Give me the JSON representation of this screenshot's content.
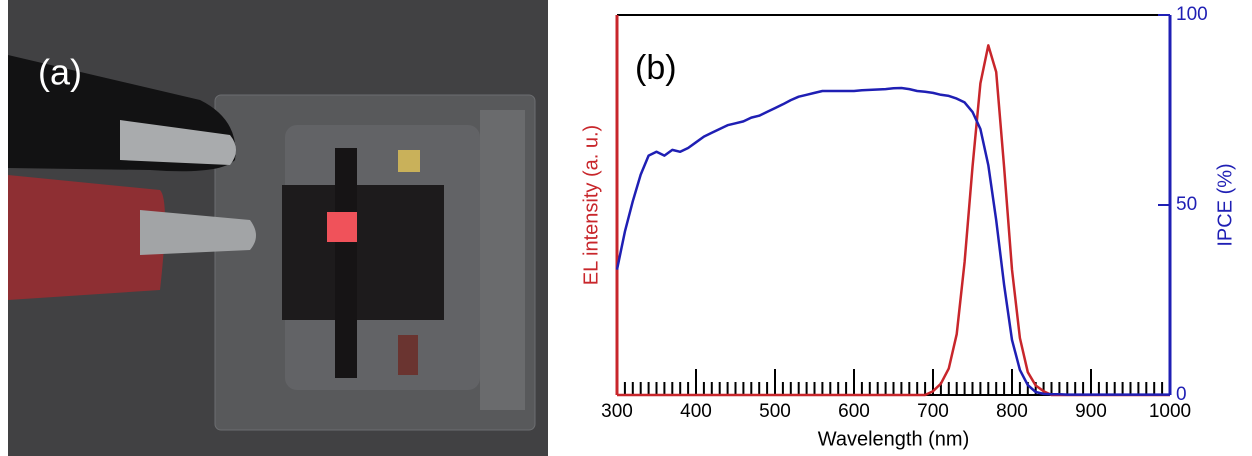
{
  "photo": {
    "label": "(a)"
  },
  "chart_data": {
    "type": "line",
    "label": "(b)",
    "xlabel": "Wavelength (nm)",
    "ylabel": "EL intensity (a. u.)",
    "y2label": "IPCE (%)",
    "xlim": [
      300,
      1000
    ],
    "xticks": [
      300,
      400,
      500,
      600,
      700,
      800,
      900,
      1000
    ],
    "xminorticks": [
      310,
      320,
      330,
      340,
      350,
      360,
      370,
      380,
      390,
      410,
      420,
      430,
      440,
      450,
      460,
      470,
      480,
      490,
      510,
      520,
      530,
      540,
      550,
      560,
      570,
      580,
      590,
      610,
      620,
      630,
      640,
      650,
      660,
      670,
      680,
      690,
      710,
      720,
      730,
      740,
      750,
      760,
      770,
      780,
      790,
      810,
      820,
      830,
      840,
      850,
      860,
      870,
      880,
      890,
      910,
      920,
      930,
      940,
      950,
      960,
      970,
      980,
      990
    ],
    "ylim": [
      0,
      1
    ],
    "y2lim": [
      0,
      100
    ],
    "y2ticks": [
      0,
      50,
      100
    ],
    "x": [
      300,
      310,
      320,
      330,
      340,
      350,
      360,
      370,
      380,
      390,
      400,
      410,
      420,
      430,
      440,
      450,
      460,
      470,
      480,
      490,
      500,
      510,
      520,
      530,
      540,
      550,
      560,
      570,
      580,
      590,
      600,
      610,
      620,
      630,
      640,
      650,
      660,
      670,
      680,
      690,
      700,
      710,
      720,
      730,
      740,
      750,
      760,
      770,
      780,
      790,
      800,
      810,
      820,
      830,
      840,
      850,
      860,
      870,
      880,
      890,
      900,
      910,
      920,
      930,
      940,
      950,
      960,
      970,
      980,
      990,
      1000
    ],
    "series": [
      {
        "color": "#c8262b",
        "axis": "y",
        "values": [
          0,
          0,
          0,
          0,
          0,
          0,
          0,
          0,
          0,
          0,
          0,
          0,
          0,
          0,
          0,
          0,
          0,
          0,
          0,
          0,
          0,
          0,
          0,
          0,
          0,
          0,
          0,
          0,
          0,
          0,
          0,
          0,
          0,
          0,
          0,
          0,
          0,
          0,
          0,
          0,
          0.01,
          0.03,
          0.07,
          0.16,
          0.35,
          0.6,
          0.82,
          0.92,
          0.85,
          0.6,
          0.33,
          0.15,
          0.06,
          0.025,
          0.01,
          0,
          0,
          0,
          0,
          0,
          0,
          0,
          0,
          0,
          0,
          0,
          0,
          0,
          0,
          0,
          0
        ]
      },
      {
        "color": "#1f1fb4",
        "axis": "y2",
        "values": [
          33,
          43,
          51,
          58,
          63,
          64,
          63,
          64.5,
          64,
          65,
          66.5,
          68,
          69,
          70,
          71,
          71.5,
          72,
          73,
          73.5,
          74.5,
          75.5,
          76.5,
          77.6,
          78.5,
          79,
          79.5,
          80,
          80,
          80,
          80,
          80,
          80.2,
          80.3,
          80.4,
          80.5,
          80.7,
          80.8,
          80.5,
          80,
          79.8,
          79.5,
          79,
          78.7,
          78,
          77,
          74.5,
          70,
          60.5,
          46,
          29,
          14.5,
          6.6,
          2.6,
          0.8,
          0.3,
          0.2,
          0.2,
          0.1,
          0.1,
          0.1,
          0.1,
          0.1,
          0.1,
          0.1,
          0.1,
          0.1,
          0.1,
          0.1,
          0.1,
          0.1,
          0.1
        ]
      }
    ]
  }
}
